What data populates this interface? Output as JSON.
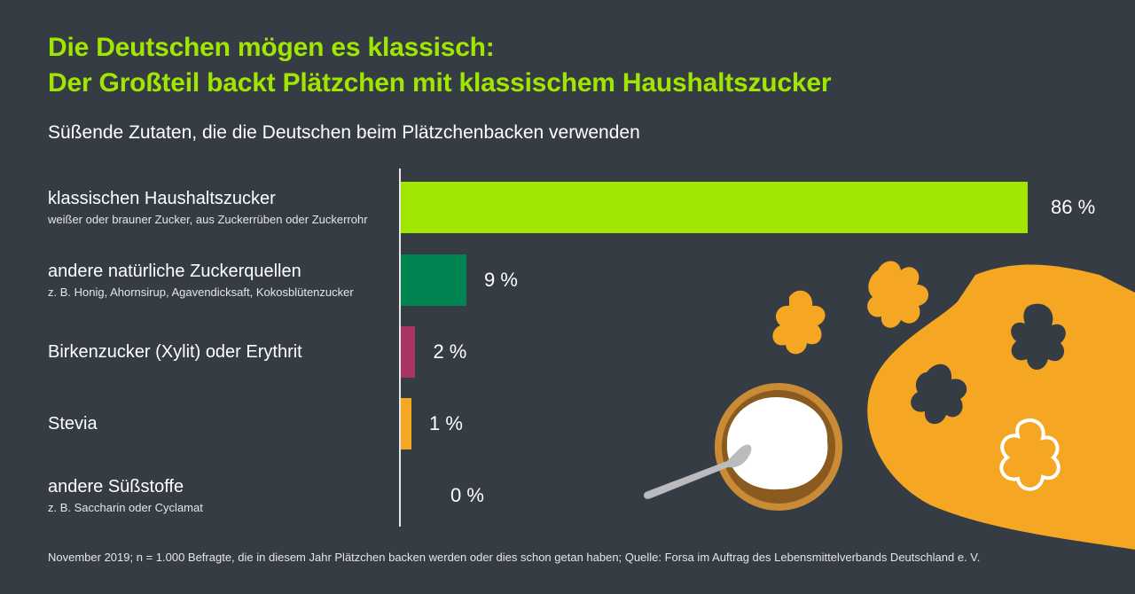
{
  "header": {
    "title_line1": "Die Deutschen mögen es klassisch:",
    "title_line2": "Der Großteil backt Plätzchen mit klassischem Haushaltszucker",
    "subtitle": "Süßende Zutaten, die die Deutschen beim Plätzchenbacken verwenden"
  },
  "footnote": "November 2019; n = 1.000 Befragte, die in diesem Jahr Plätzchen backen werden oder dies schon getan haben; Quelle: Forsa im Auftrag des Lebensmittelverbands Deutschland e. V.",
  "chart_data": {
    "type": "bar",
    "orientation": "horizontal",
    "title": "Süßende Zutaten, die die Deutschen beim Plätzchenbacken verwenden",
    "xlabel": "",
    "ylabel": "",
    "xlim": [
      0,
      100
    ],
    "grid": false,
    "unit": "%",
    "categories": [
      "klassischen Haushaltszucker",
      "andere natürliche Zuckerquellen",
      "Birkenzucker (Xylit) oder Erythrit",
      "Stevia",
      "andere Süßstoffe"
    ],
    "category_notes": [
      "weißer oder brauner Zucker, aus Zuckerrüben oder Zuckerrohr",
      "z. B. Honig, Ahornsirup, Agavendicksaft, Kokosblütenzucker",
      "",
      "",
      "z. B. Saccharin oder Cyclamat"
    ],
    "values": [
      86,
      9,
      2,
      1,
      0
    ],
    "value_labels": [
      "86 %",
      "9 %",
      "2 %",
      "1 %",
      "0 %"
    ],
    "colors": [
      "#a0e600",
      "#008552",
      "#ab3466",
      "#f5a623",
      "#f5a623"
    ]
  },
  "illustration": {
    "description": "Schüssel mit Zucker, Löffel, Teig mit ausgestochenen Lebkuchenmännchen und Ausstecher",
    "colors": {
      "dough": "#f5a623",
      "bowl": "#c98b36",
      "sugar": "#ffffff",
      "spoon": "#b9bbbe"
    }
  }
}
